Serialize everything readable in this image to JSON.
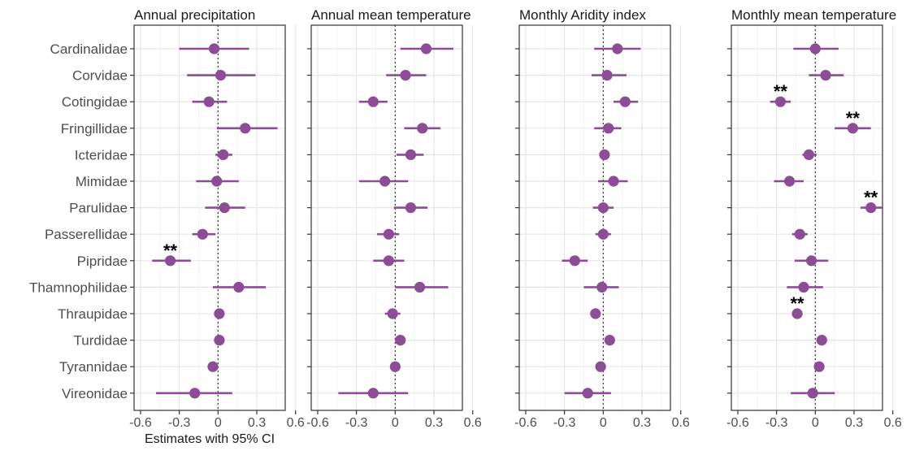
{
  "chart_data": {
    "type": "scatter",
    "categories": [
      "Cardinalidae",
      "Corvidae",
      "Cotingidae",
      "Fringillidae",
      "Icteridae",
      "Mimidae",
      "Parulidae",
      "Passerellidae",
      "Pipridae",
      "Thamnophilidae",
      "Thraupidae",
      "Turdidae",
      "Tyrannidae",
      "Vireonidae"
    ],
    "xlabel": "Estimates with 95% CI",
    "x_ticks": [
      "-0.6",
      "-0.3",
      "0",
      "0.3",
      "0.6"
    ],
    "xlim": [
      -0.65,
      0.52
    ],
    "grid": true,
    "reference_line": 0,
    "significance_marker": "**",
    "point_color": "#8c4d96",
    "panels": [
      {
        "title": "Annual precipitation",
        "estimates": [
          -0.03,
          0.02,
          -0.07,
          0.21,
          0.04,
          -0.01,
          0.05,
          -0.12,
          -0.37,
          0.16,
          0.01,
          0.01,
          -0.04,
          -0.18
        ],
        "lower": [
          -0.3,
          -0.24,
          -0.2,
          -0.01,
          -0.02,
          -0.17,
          -0.1,
          -0.2,
          -0.51,
          -0.04,
          -0.02,
          -0.02,
          -0.06,
          -0.48
        ],
        "upper": [
          0.24,
          0.29,
          0.07,
          0.46,
          0.11,
          0.16,
          0.21,
          -0.02,
          -0.21,
          0.37,
          0.03,
          0.03,
          -0.01,
          0.11
        ],
        "significant": [
          "Pipridae"
        ]
      },
      {
        "title": "Annual mean temperature",
        "estimates": [
          0.24,
          0.08,
          -0.17,
          0.21,
          0.12,
          -0.08,
          0.12,
          -0.05,
          -0.05,
          0.19,
          -0.02,
          0.04,
          0.0,
          -0.17
        ],
        "lower": [
          0.04,
          -0.07,
          -0.28,
          0.07,
          0.01,
          -0.28,
          -0.01,
          -0.14,
          -0.17,
          0.0,
          -0.08,
          0.01,
          -0.01,
          -0.44
        ],
        "upper": [
          0.45,
          0.24,
          -0.06,
          0.35,
          0.22,
          0.1,
          0.25,
          0.03,
          0.07,
          0.41,
          0.04,
          0.08,
          0.01,
          0.1
        ],
        "significant": []
      },
      {
        "title": "Monthly Aridity index",
        "estimates": [
          0.11,
          0.03,
          0.17,
          0.04,
          0.01,
          0.08,
          0.0,
          0.0,
          -0.22,
          -0.01,
          -0.06,
          0.05,
          -0.02,
          -0.12
        ],
        "lower": [
          -0.07,
          -0.09,
          0.08,
          -0.07,
          -0.01,
          -0.04,
          -0.08,
          -0.06,
          -0.32,
          -0.15,
          -0.08,
          0.02,
          -0.04,
          -0.3
        ],
        "upper": [
          0.29,
          0.18,
          0.27,
          0.14,
          0.03,
          0.19,
          0.08,
          0.06,
          -0.12,
          0.12,
          -0.04,
          0.08,
          0.0,
          0.06
        ],
        "significant": []
      },
      {
        "title": "Monthly mean temperature",
        "estimates": [
          0.0,
          0.08,
          -0.27,
          0.29,
          -0.05,
          -0.2,
          0.43,
          -0.12,
          -0.03,
          -0.09,
          -0.14,
          0.05,
          0.03,
          -0.02
        ],
        "lower": [
          -0.17,
          -0.05,
          -0.35,
          0.15,
          -0.1,
          -0.32,
          0.35,
          -0.18,
          -0.16,
          -0.22,
          -0.15,
          0.02,
          0.01,
          -0.19
        ],
        "upper": [
          0.18,
          0.22,
          -0.19,
          0.43,
          0.01,
          -0.09,
          0.52,
          -0.06,
          0.1,
          0.06,
          -0.13,
          0.08,
          0.05,
          0.15
        ],
        "significant": [
          "Cotingidae",
          "Fringillidae",
          "Parulidae",
          "Thraupidae"
        ]
      }
    ]
  }
}
